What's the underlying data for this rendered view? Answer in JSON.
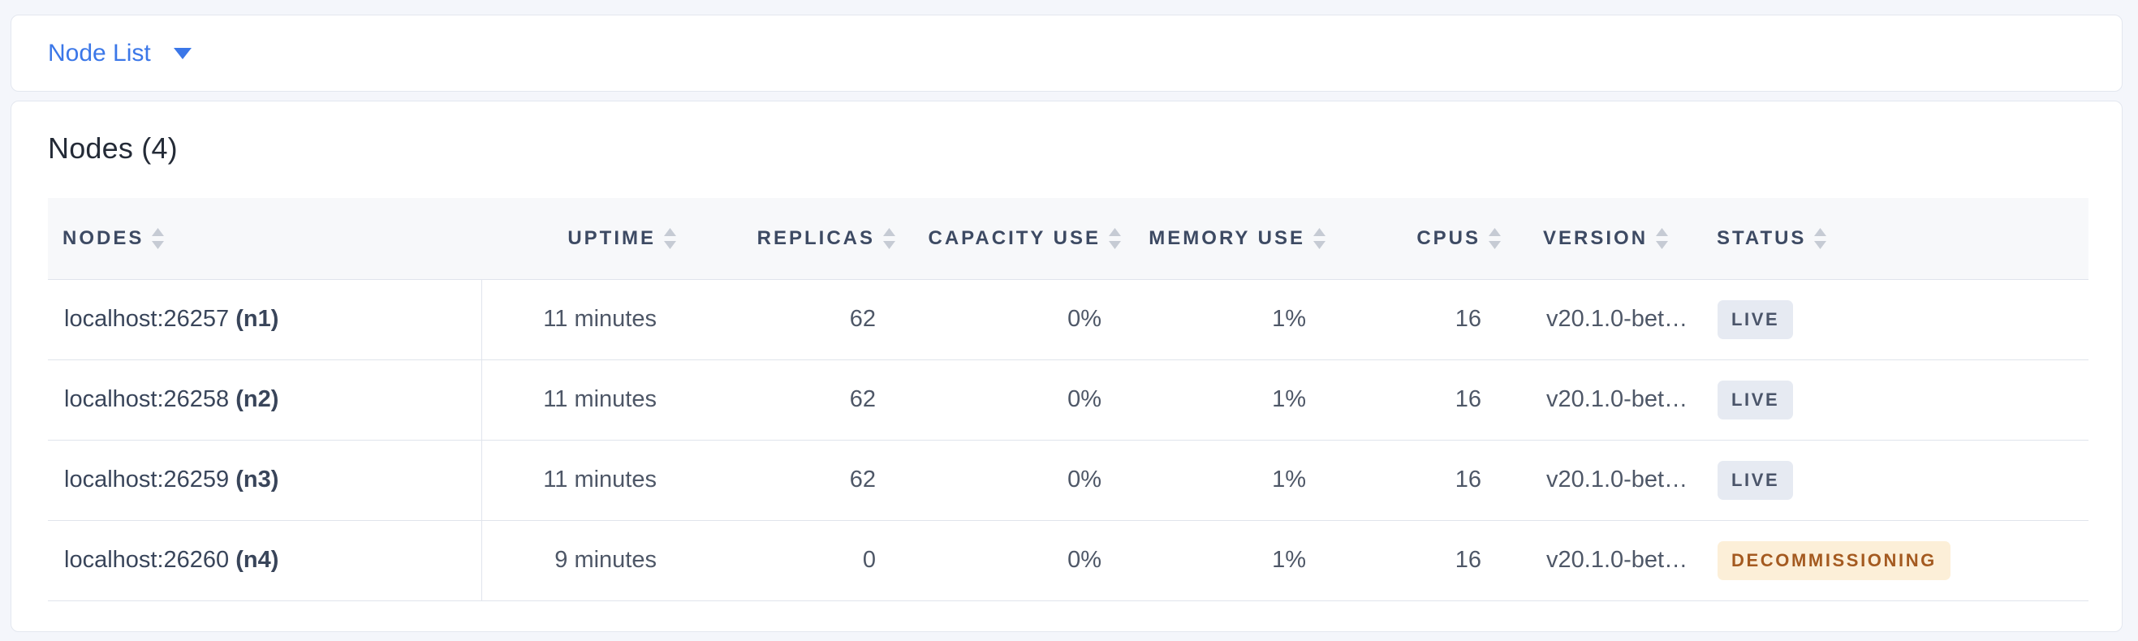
{
  "colors": {
    "accent_blue": "#3b77e8",
    "page_background": "#f4f6fb",
    "live_badge_bg": "#e6eaf2",
    "live_badge_text": "#4a5469",
    "decommissioning_badge_bg": "#fcefd8",
    "decommissioning_badge_text": "#a45a20"
  },
  "view_selector": {
    "label": "Node List",
    "caret_icon": "caret-down-icon"
  },
  "summary": {
    "title": "Nodes (4)"
  },
  "table": {
    "columns": [
      {
        "key": "nodes",
        "label": "NODES",
        "sort_icon": "sort-icon"
      },
      {
        "key": "uptime",
        "label": "UPTIME",
        "sort_icon": "sort-icon"
      },
      {
        "key": "replicas",
        "label": "REPLICAS",
        "sort_icon": "sort-icon"
      },
      {
        "key": "capacity_use",
        "label": "CAPACITY USE",
        "sort_icon": "sort-icon"
      },
      {
        "key": "memory_use",
        "label": "MEMORY USE",
        "sort_icon": "sort-icon"
      },
      {
        "key": "cpus",
        "label": "CPUS",
        "sort_icon": "sort-icon"
      },
      {
        "key": "version",
        "label": "VERSION",
        "sort_icon": "sort-icon"
      },
      {
        "key": "status",
        "label": "STATUS",
        "sort_icon": "sort-icon"
      }
    ],
    "rows": [
      {
        "nodes": {
          "address": "localhost:26257",
          "id": "(n1)"
        },
        "uptime": "11 minutes",
        "replicas": "62",
        "capacity_use": "0%",
        "memory_use": "1%",
        "cpus": "16",
        "version": "v20.1.0-bet…",
        "status": {
          "label": "LIVE",
          "type": "live"
        }
      },
      {
        "nodes": {
          "address": "localhost:26258",
          "id": "(n2)"
        },
        "uptime": "11 minutes",
        "replicas": "62",
        "capacity_use": "0%",
        "memory_use": "1%",
        "cpus": "16",
        "version": "v20.1.0-bet…",
        "status": {
          "label": "LIVE",
          "type": "live"
        }
      },
      {
        "nodes": {
          "address": "localhost:26259",
          "id": "(n3)"
        },
        "uptime": "11 minutes",
        "replicas": "62",
        "capacity_use": "0%",
        "memory_use": "1%",
        "cpus": "16",
        "version": "v20.1.0-bet…",
        "status": {
          "label": "LIVE",
          "type": "live"
        }
      },
      {
        "nodes": {
          "address": "localhost:26260",
          "id": "(n4)"
        },
        "uptime": "9 minutes",
        "replicas": "0",
        "capacity_use": "0%",
        "memory_use": "1%",
        "cpus": "16",
        "version": "v20.1.0-bet…",
        "status": {
          "label": "DECOMMISSIONING",
          "type": "decommissioning"
        }
      }
    ]
  }
}
